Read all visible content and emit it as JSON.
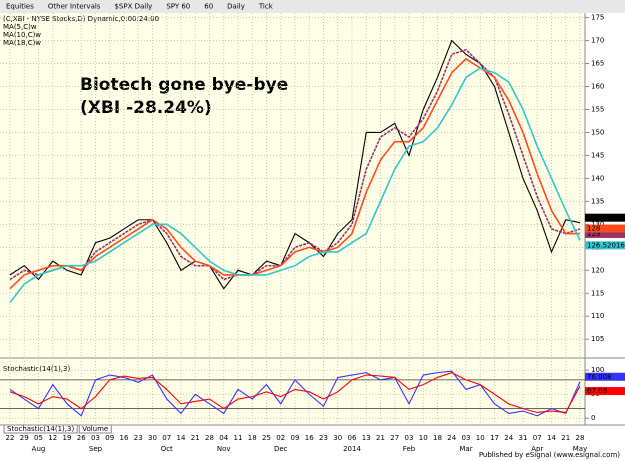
{
  "toolbar": [
    "Equities",
    "Other Intervals",
    "$SPX Daily",
    "SPY 60",
    "60",
    "Daily",
    "Tick"
  ],
  "tabs": [
    "Stochastic(14(1),3)",
    "Volume"
  ],
  "footer": "Published by eSignal (www.esignal.com)",
  "chart_data": [
    {
      "type": "line",
      "title": "(C,XBI - NYSE Stocks,D) Dynamic,0:00:24:00",
      "annotations": [
        "Biotech gone bye-bye",
        "(XBI -28.24%)"
      ],
      "ylim": [
        102,
        176
      ],
      "yticks": [
        105,
        110,
        115,
        120,
        125,
        130,
        135,
        140,
        145,
        150,
        155,
        160,
        165,
        170,
        175
      ],
      "grid": true,
      "label_last": true,
      "series": [
        {
          "color": "#000000",
          "values": [
            119,
            121,
            118,
            122,
            120,
            119,
            126,
            127,
            129,
            131,
            131,
            126,
            120,
            122,
            121,
            116,
            120,
            119,
            122,
            121,
            128,
            126,
            123,
            128,
            131,
            150,
            150,
            152,
            145,
            155,
            162,
            170,
            167,
            165,
            160,
            150,
            140,
            133,
            124,
            131,
            130.36
          ]
        },
        {
          "name": "MA(5,C)w",
          "color": "#993366",
          "dash": true,
          "values": [
            118,
            120,
            119,
            120,
            121,
            120,
            124,
            126,
            128,
            130,
            131,
            128,
            123,
            121,
            121,
            118,
            119,
            119,
            121,
            121,
            125,
            126,
            124,
            126,
            130,
            142,
            149,
            151,
            149,
            153,
            159,
            167,
            168,
            165,
            162,
            154,
            145,
            136,
            129,
            128,
            129
          ]
        },
        {
          "name": "MA(10,C)w",
          "color": "#ff4a1c",
          "values": [
            116,
            119,
            120,
            121,
            121,
            120,
            123,
            125,
            127,
            129,
            131,
            129,
            125,
            122,
            121,
            119,
            119,
            119,
            120,
            121,
            124,
            125,
            124,
            125,
            128,
            137,
            144,
            148,
            148,
            151,
            157,
            163,
            166,
            164,
            162,
            157,
            150,
            141,
            133,
            128,
            128
          ]
        },
        {
          "name": "MA(18,C)w",
          "color": "#33c6cc",
          "values": [
            113,
            117,
            119,
            120,
            121,
            121,
            122,
            124,
            126,
            128,
            130,
            130,
            128,
            125,
            122,
            120,
            119,
            119,
            119,
            120,
            121,
            123,
            124,
            124,
            126,
            128,
            135,
            142,
            147,
            148,
            151,
            156,
            162,
            164,
            163,
            161,
            155,
            147,
            140,
            133,
            126.520167
          ]
        }
      ]
    },
    {
      "type": "line",
      "title": "Stochastic(14(1),3)",
      "ylim": [
        -12,
        113
      ],
      "yticks": [
        0,
        50,
        100
      ],
      "levels": [
        20,
        80
      ],
      "grid": true,
      "label_last": true,
      "categories": [
        "22",
        "29",
        "05",
        "12",
        "19",
        "26",
        "03",
        "09",
        "16",
        "23",
        "30",
        "07",
        "14",
        "21",
        "28",
        "04",
        "11",
        "18",
        "25",
        "02",
        "09",
        "16",
        "23",
        "30",
        "06",
        "13",
        "21",
        "27",
        "03",
        "10",
        "18",
        "24",
        "03",
        "10",
        "17",
        "24",
        "31",
        "07",
        "14",
        "21",
        "28"
      ],
      "months": [
        null,
        null,
        "Aug",
        null,
        null,
        null,
        "Sep",
        null,
        null,
        null,
        null,
        "Oct",
        null,
        null,
        null,
        "Nov",
        null,
        null,
        null,
        "Dec",
        null,
        null,
        null,
        null,
        "2014",
        null,
        null,
        null,
        "Feb",
        null,
        null,
        null,
        "Mar",
        null,
        null,
        null,
        null,
        "Apr",
        null,
        null,
        "May"
      ],
      "series": [
        {
          "color": "#3333ff",
          "values": [
            60,
            40,
            20,
            70,
            30,
            5,
            80,
            90,
            85,
            75,
            90,
            40,
            10,
            50,
            30,
            10,
            60,
            40,
            70,
            30,
            80,
            50,
            25,
            85,
            90,
            95,
            80,
            85,
            30,
            90,
            95,
            98,
            60,
            70,
            30,
            10,
            15,
            5,
            20,
            10,
            76.008
          ]
        },
        {
          "color": "#ff0000",
          "values": [
            55,
            45,
            30,
            45,
            40,
            20,
            45,
            80,
            88,
            83,
            85,
            60,
            30,
            35,
            40,
            20,
            40,
            45,
            55,
            45,
            60,
            55,
            40,
            55,
            80,
            90,
            88,
            85,
            60,
            70,
            85,
            95,
            80,
            70,
            50,
            30,
            20,
            12,
            15,
            12,
            67.08
          ]
        }
      ]
    }
  ]
}
